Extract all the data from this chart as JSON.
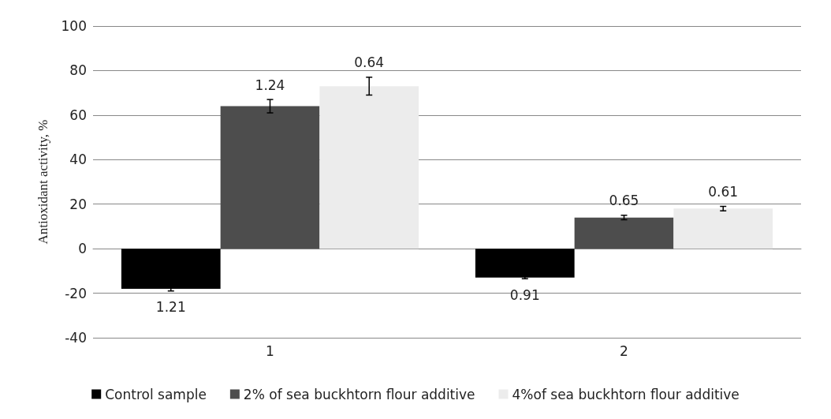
{
  "chart_data": {
    "type": "bar",
    "ylabel": "Antioxidant activity, %",
    "categories": [
      "1",
      "2"
    ],
    "series": [
      {
        "name": "Control sample",
        "color": "#000000",
        "values": [
          -18,
          -13
        ],
        "errors": [
          1,
          0.5
        ]
      },
      {
        "name": "2% of sea buckhtorn flour additive",
        "color": "#4d4d4d",
        "values": [
          64,
          14
        ],
        "errors": [
          3,
          1
        ]
      },
      {
        "name": "4%of sea buckhtorn flour additive",
        "color": "#ececec",
        "values": [
          73,
          18
        ],
        "errors": [
          4,
          1
        ]
      }
    ],
    "annotations": [
      "1.21",
      "1.24",
      "0.64",
      "0.91",
      "0.65",
      "0.61"
    ],
    "ylim": [
      -40,
      100
    ],
    "yticks": [
      -40,
      -20,
      0,
      20,
      40,
      60,
      80,
      100
    ],
    "grid": "y",
    "legend": "bottom"
  }
}
